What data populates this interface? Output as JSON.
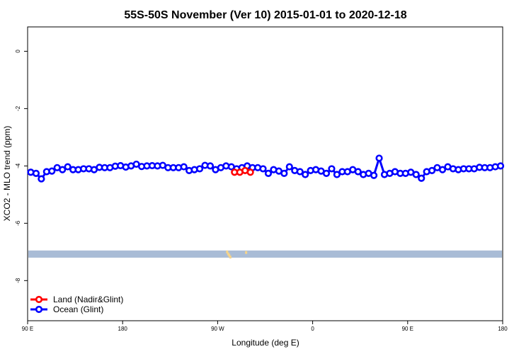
{
  "chart_data": {
    "type": "line",
    "title": "55S-50S November (Ver 10)   2015-01-01 to 2020-12-18",
    "xlabel": "Longitude (deg E)",
    "ylabel": "XCO2 - MLO trend (ppm)",
    "x_ticks": [
      {
        "value": 90,
        "label": "90 E"
      },
      {
        "value": 180,
        "label": "180"
      },
      {
        "value": 270,
        "label": "90 W"
      },
      {
        "value": 360,
        "label": "0"
      },
      {
        "value": 450,
        "label": "90 E"
      },
      {
        "value": 540,
        "label": "180"
      }
    ],
    "y_ticks": [
      {
        "value": 0,
        "label": "0"
      },
      {
        "value": -2,
        "label": "-2"
      },
      {
        "value": -4,
        "label": "-4"
      },
      {
        "value": -6,
        "label": "-6"
      },
      {
        "value": -8,
        "label": "-8"
      }
    ],
    "xlim": [
      90,
      540
    ],
    "ylim": [
      -9.4,
      0.85
    ],
    "grid": false,
    "legend_position": "bottom-left",
    "series": [
      {
        "name": "Land (Nadir&Glint)",
        "color": "#ff0000",
        "x": [
          286,
          291,
          296,
          301
        ],
        "y": [
          -4.22,
          -4.22,
          -4.16,
          -4.22
        ]
      },
      {
        "name": "Ocean (Glint)",
        "color": "#0000ff",
        "x": [
          93,
          98,
          103,
          108,
          113,
          118,
          123,
          128,
          133,
          138,
          143,
          148,
          153,
          158,
          163,
          168,
          173,
          178,
          183,
          188,
          193,
          198,
          203,
          208,
          213,
          218,
          223,
          228,
          233,
          238,
          243,
          248,
          253,
          258,
          263,
          268,
          273,
          278,
          283,
          288,
          293,
          298,
          303,
          308,
          313,
          318,
          323,
          328,
          333,
          338,
          343,
          348,
          353,
          358,
          363,
          368,
          373,
          378,
          383,
          388,
          393,
          398,
          403,
          408,
          413,
          418,
          423,
          428,
          433,
          438,
          443,
          448,
          453,
          458,
          463,
          468,
          473,
          478,
          483,
          488,
          493,
          498,
          503,
          508,
          513,
          518,
          523,
          528,
          533,
          538
        ],
        "y": [
          -4.22,
          -4.26,
          -4.45,
          -4.2,
          -4.18,
          -4.06,
          -4.13,
          -4.03,
          -4.13,
          -4.13,
          -4.1,
          -4.1,
          -4.13,
          -4.05,
          -4.06,
          -4.06,
          -4.01,
          -3.99,
          -4.04,
          -4.0,
          -3.94,
          -4.02,
          -4.0,
          -3.99,
          -4.0,
          -3.98,
          -4.06,
          -4.06,
          -4.06,
          -4.03,
          -4.16,
          -4.13,
          -4.1,
          -3.98,
          -4.0,
          -4.13,
          -4.06,
          -4.0,
          -4.03,
          -4.1,
          -4.06,
          -4.0,
          -4.06,
          -4.06,
          -4.1,
          -4.26,
          -4.13,
          -4.18,
          -4.26,
          -4.03,
          -4.16,
          -4.2,
          -4.3,
          -4.16,
          -4.13,
          -4.18,
          -4.26,
          -4.1,
          -4.3,
          -4.2,
          -4.2,
          -4.13,
          -4.2,
          -4.3,
          -4.26,
          -4.33,
          -3.73,
          -4.3,
          -4.26,
          -4.2,
          -4.26,
          -4.26,
          -4.22,
          -4.3,
          -4.43,
          -4.2,
          -4.16,
          -4.06,
          -4.13,
          -4.03,
          -4.1,
          -4.13,
          -4.1,
          -4.1,
          -4.1,
          -4.05,
          -4.06,
          -4.06,
          -4.03,
          -4.0
        ]
      }
    ],
    "background_bands": [
      {
        "y_from": -6.95,
        "y_to": -7.2,
        "color": "#a9bcd6"
      }
    ],
    "land_marks": [
      {
        "x": 279,
        "y": -7.0,
        "color": "#f6d48a"
      },
      {
        "x": 280,
        "y": -7.07,
        "color": "#f6d48a"
      },
      {
        "x": 281,
        "y": -7.12,
        "color": "#f6d48a"
      },
      {
        "x": 282,
        "y": -7.18,
        "color": "#f6d48a"
      },
      {
        "x": 297,
        "y": -7.02,
        "color": "#f6d48a"
      }
    ]
  }
}
